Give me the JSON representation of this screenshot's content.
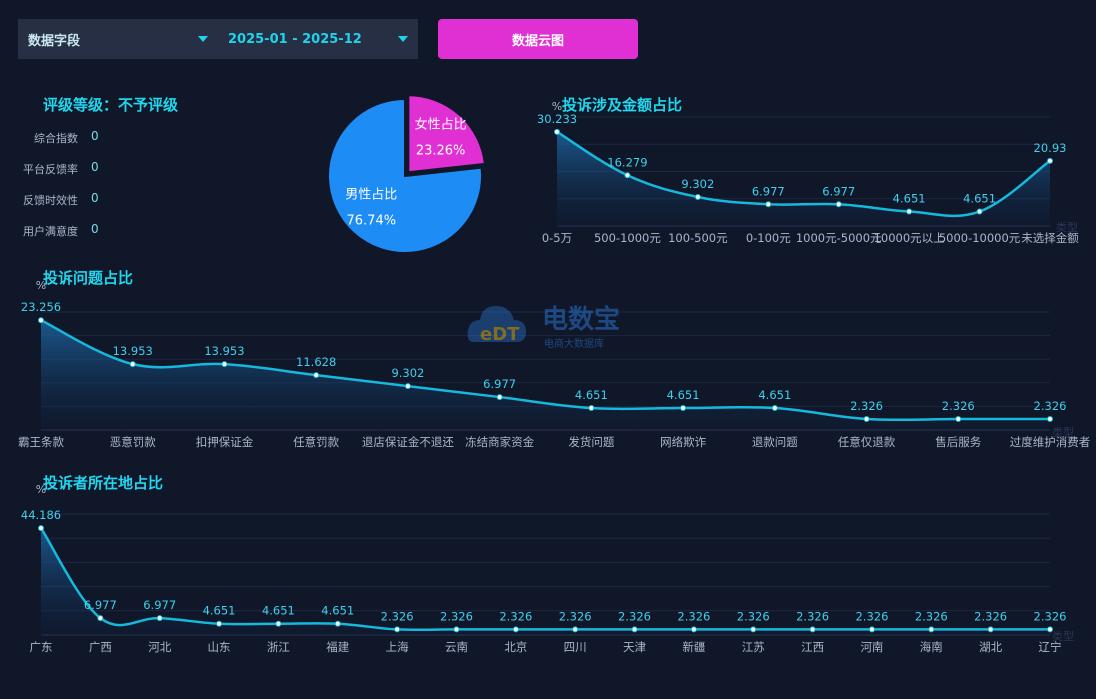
{
  "filters": {
    "field_label": "数据字段",
    "date_range": "2025-01 - 2025-12",
    "cloud_button": "数据云图"
  },
  "rating": {
    "title": "评级等级：不予评级",
    "metrics": [
      {
        "label": "综合指数",
        "value": "0"
      },
      {
        "label": "平台反馈率",
        "value": "0"
      },
      {
        "label": "反馈时效性",
        "value": "0"
      },
      {
        "label": "用户满意度",
        "value": "0"
      }
    ]
  },
  "watermark": {
    "brand": "电数宝",
    "sub": "电商大数据库",
    "logo": "eDT"
  },
  "chart_data": [
    {
      "type": "pie",
      "slices": [
        {
          "label": "女性占比",
          "value": 23.26,
          "display": "23.26%",
          "color": "#e030d4"
        },
        {
          "label": "男性占比",
          "value": 76.74,
          "display": "76.74%",
          "color": "#1e8cf5"
        }
      ]
    },
    {
      "type": "area",
      "title": "投诉涉及金额占比",
      "ylabel": "%",
      "xlabel": "类型",
      "ylim": [
        0,
        35
      ],
      "categories": [
        "0-5万",
        "500-1000元",
        "100-500元",
        "0-100元",
        "1000元-5000元",
        "10000元以上",
        "5000-10000元",
        "未选择金额"
      ],
      "values": [
        30.233,
        16.279,
        9.302,
        6.977,
        6.977,
        4.651,
        4.651,
        20.93
      ],
      "labels": [
        "30.233",
        "16.279",
        "9.302",
        "6.977",
        "6.977",
        "4.651",
        "4.651",
        "20.93"
      ]
    },
    {
      "type": "area",
      "title": "投诉问题占比",
      "ylabel": "%",
      "xlabel": "类型",
      "ylim": [
        0,
        25
      ],
      "categories": [
        "霸王条款",
        "恶意罚款",
        "扣押保证金",
        "任意罚款",
        "退店保证金不退还",
        "冻结商家资金",
        "发货问题",
        "网络欺诈",
        "退款问题",
        "任意仅退款",
        "售后服务",
        "过度维护消费者"
      ],
      "values": [
        23.256,
        13.953,
        13.953,
        11.628,
        9.302,
        6.977,
        4.651,
        4.651,
        4.651,
        2.326,
        2.326,
        2.326
      ],
      "labels": [
        "23.256",
        "13.953",
        "13.953",
        "11.628",
        "9.302",
        "6.977",
        "4.651",
        "4.651",
        "4.651",
        "2.326",
        "2.326",
        "2.326"
      ]
    },
    {
      "type": "area",
      "title": "投诉者所在地占比",
      "ylabel": "%",
      "xlabel": "类型",
      "ylim": [
        0,
        50
      ],
      "categories": [
        "广东",
        "广西",
        "河北",
        "山东",
        "浙江",
        "福建",
        "上海",
        "云南",
        "北京",
        "四川",
        "天津",
        "新疆",
        "江苏",
        "江西",
        "河南",
        "海南",
        "湖北",
        "辽宁"
      ],
      "values": [
        44.186,
        6.977,
        6.977,
        4.651,
        4.651,
        4.651,
        2.326,
        2.326,
        2.326,
        2.326,
        2.326,
        2.326,
        2.326,
        2.326,
        2.326,
        2.326,
        2.326,
        2.326
      ],
      "labels": [
        "44.186",
        "6.977",
        "6.977",
        "4.651",
        "4.651",
        "4.651",
        "2.326",
        "2.326",
        "2.326",
        "2.326",
        "2.326",
        "2.326",
        "2.326",
        "2.326",
        "2.326",
        "2.326",
        "2.326",
        "2.326"
      ]
    }
  ]
}
